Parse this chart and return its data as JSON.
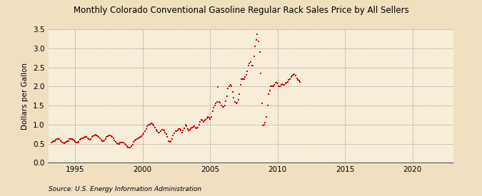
{
  "title": "Monthly Colorado Conventional Gasoline Regular Rack Sales Price by All Sellers",
  "ylabel": "Dollars per Gallon",
  "source": "Source: U.S. Energy Information Administration",
  "background_color": "#f0e0c0",
  "plot_background_color": "#f8edd8",
  "dot_color": "#cc0000",
  "dot_size": 4,
  "ylim": [
    0.0,
    3.5
  ],
  "yticks": [
    0.0,
    0.5,
    1.0,
    1.5,
    2.0,
    2.5,
    3.0,
    3.5
  ],
  "xlim": [
    1993.0,
    2023.0
  ],
  "xticks": [
    1995,
    2000,
    2005,
    2010,
    2015,
    2020
  ],
  "data": [
    [
      1993.25,
      0.53
    ],
    [
      1993.33,
      0.55
    ],
    [
      1993.42,
      0.57
    ],
    [
      1993.5,
      0.56
    ],
    [
      1993.58,
      0.6
    ],
    [
      1993.67,
      0.63
    ],
    [
      1993.75,
      0.63
    ],
    [
      1993.83,
      0.62
    ],
    [
      1993.92,
      0.58
    ],
    [
      1994.0,
      0.55
    ],
    [
      1994.08,
      0.52
    ],
    [
      1994.17,
      0.51
    ],
    [
      1994.25,
      0.52
    ],
    [
      1994.33,
      0.54
    ],
    [
      1994.42,
      0.57
    ],
    [
      1994.5,
      0.57
    ],
    [
      1994.58,
      0.62
    ],
    [
      1994.67,
      0.62
    ],
    [
      1994.75,
      0.62
    ],
    [
      1994.83,
      0.61
    ],
    [
      1994.92,
      0.58
    ],
    [
      1995.0,
      0.54
    ],
    [
      1995.08,
      0.52
    ],
    [
      1995.17,
      0.52
    ],
    [
      1995.25,
      0.55
    ],
    [
      1995.33,
      0.6
    ],
    [
      1995.42,
      0.62
    ],
    [
      1995.5,
      0.64
    ],
    [
      1995.58,
      0.65
    ],
    [
      1995.67,
      0.66
    ],
    [
      1995.75,
      0.67
    ],
    [
      1995.83,
      0.67
    ],
    [
      1995.92,
      0.65
    ],
    [
      1996.0,
      0.62
    ],
    [
      1996.08,
      0.61
    ],
    [
      1996.17,
      0.62
    ],
    [
      1996.25,
      0.67
    ],
    [
      1996.33,
      0.7
    ],
    [
      1996.42,
      0.72
    ],
    [
      1996.5,
      0.73
    ],
    [
      1996.58,
      0.72
    ],
    [
      1996.67,
      0.7
    ],
    [
      1996.75,
      0.68
    ],
    [
      1996.83,
      0.64
    ],
    [
      1996.92,
      0.6
    ],
    [
      1997.0,
      0.57
    ],
    [
      1997.08,
      0.56
    ],
    [
      1997.17,
      0.58
    ],
    [
      1997.25,
      0.63
    ],
    [
      1997.33,
      0.67
    ],
    [
      1997.42,
      0.7
    ],
    [
      1997.5,
      0.71
    ],
    [
      1997.58,
      0.72
    ],
    [
      1997.67,
      0.7
    ],
    [
      1997.75,
      0.68
    ],
    [
      1997.83,
      0.64
    ],
    [
      1997.92,
      0.59
    ],
    [
      1998.0,
      0.54
    ],
    [
      1998.08,
      0.51
    ],
    [
      1998.17,
      0.5
    ],
    [
      1998.25,
      0.5
    ],
    [
      1998.33,
      0.52
    ],
    [
      1998.42,
      0.53
    ],
    [
      1998.5,
      0.53
    ],
    [
      1998.58,
      0.52
    ],
    [
      1998.67,
      0.5
    ],
    [
      1998.75,
      0.48
    ],
    [
      1998.83,
      0.43
    ],
    [
      1998.92,
      0.4
    ],
    [
      1999.0,
      0.39
    ],
    [
      1999.08,
      0.4
    ],
    [
      1999.17,
      0.43
    ],
    [
      1999.25,
      0.48
    ],
    [
      1999.33,
      0.54
    ],
    [
      1999.42,
      0.58
    ],
    [
      1999.5,
      0.6
    ],
    [
      1999.58,
      0.62
    ],
    [
      1999.67,
      0.64
    ],
    [
      1999.75,
      0.66
    ],
    [
      1999.83,
      0.68
    ],
    [
      1999.92,
      0.7
    ],
    [
      2000.0,
      0.74
    ],
    [
      2000.08,
      0.78
    ],
    [
      2000.17,
      0.83
    ],
    [
      2000.25,
      0.89
    ],
    [
      2000.33,
      0.95
    ],
    [
      2000.42,
      0.99
    ],
    [
      2000.5,
      1.0
    ],
    [
      2000.58,
      1.02
    ],
    [
      2000.67,
      1.03
    ],
    [
      2000.75,
      1.02
    ],
    [
      2000.83,
      0.98
    ],
    [
      2000.92,
      0.92
    ],
    [
      2001.0,
      0.87
    ],
    [
      2001.08,
      0.83
    ],
    [
      2001.17,
      0.8
    ],
    [
      2001.25,
      0.79
    ],
    [
      2001.33,
      0.82
    ],
    [
      2001.42,
      0.86
    ],
    [
      2001.5,
      0.86
    ],
    [
      2001.58,
      0.84
    ],
    [
      2001.67,
      0.8
    ],
    [
      2001.75,
      0.76
    ],
    [
      2001.83,
      0.68
    ],
    [
      2001.92,
      0.57
    ],
    [
      2002.0,
      0.55
    ],
    [
      2002.08,
      0.57
    ],
    [
      2002.17,
      0.62
    ],
    [
      2002.25,
      0.71
    ],
    [
      2002.33,
      0.78
    ],
    [
      2002.42,
      0.82
    ],
    [
      2002.5,
      0.83
    ],
    [
      2002.58,
      0.85
    ],
    [
      2002.67,
      0.88
    ],
    [
      2002.75,
      0.88
    ],
    [
      2002.83,
      0.84
    ],
    [
      2002.92,
      0.8
    ],
    [
      2003.0,
      0.85
    ],
    [
      2003.08,
      0.9
    ],
    [
      2003.17,
      1.0
    ],
    [
      2003.25,
      0.95
    ],
    [
      2003.33,
      0.88
    ],
    [
      2003.42,
      0.84
    ],
    [
      2003.5,
      0.87
    ],
    [
      2003.58,
      0.9
    ],
    [
      2003.67,
      0.92
    ],
    [
      2003.75,
      0.94
    ],
    [
      2003.83,
      0.95
    ],
    [
      2003.92,
      0.92
    ],
    [
      2004.0,
      0.9
    ],
    [
      2004.08,
      0.93
    ],
    [
      2004.17,
      0.99
    ],
    [
      2004.25,
      1.07
    ],
    [
      2004.33,
      1.12
    ],
    [
      2004.42,
      1.1
    ],
    [
      2004.5,
      1.08
    ],
    [
      2004.58,
      1.1
    ],
    [
      2004.67,
      1.13
    ],
    [
      2004.75,
      1.17
    ],
    [
      2004.83,
      1.2
    ],
    [
      2004.92,
      1.18
    ],
    [
      2005.0,
      1.15
    ],
    [
      2005.08,
      1.2
    ],
    [
      2005.17,
      1.35
    ],
    [
      2005.25,
      1.45
    ],
    [
      2005.33,
      1.5
    ],
    [
      2005.42,
      1.55
    ],
    [
      2005.5,
      1.6
    ],
    [
      2005.58,
      1.98
    ],
    [
      2005.67,
      1.6
    ],
    [
      2005.75,
      1.57
    ],
    [
      2005.83,
      1.5
    ],
    [
      2005.92,
      1.47
    ],
    [
      2006.0,
      1.47
    ],
    [
      2006.08,
      1.5
    ],
    [
      2006.17,
      1.62
    ],
    [
      2006.25,
      1.75
    ],
    [
      2006.33,
      1.95
    ],
    [
      2006.42,
      2.0
    ],
    [
      2006.5,
      2.05
    ],
    [
      2006.58,
      2.0
    ],
    [
      2006.67,
      1.85
    ],
    [
      2006.75,
      1.7
    ],
    [
      2006.83,
      1.6
    ],
    [
      2006.92,
      1.55
    ],
    [
      2007.0,
      1.57
    ],
    [
      2007.08,
      1.65
    ],
    [
      2007.17,
      1.8
    ],
    [
      2007.25,
      2.05
    ],
    [
      2007.33,
      2.2
    ],
    [
      2007.42,
      2.2
    ],
    [
      2007.5,
      2.2
    ],
    [
      2007.58,
      2.25
    ],
    [
      2007.67,
      2.3
    ],
    [
      2007.75,
      2.4
    ],
    [
      2007.83,
      2.55
    ],
    [
      2007.92,
      2.6
    ],
    [
      2008.0,
      2.65
    ],
    [
      2008.08,
      2.55
    ],
    [
      2008.17,
      2.55
    ],
    [
      2008.25,
      2.8
    ],
    [
      2008.33,
      3.05
    ],
    [
      2008.42,
      3.22
    ],
    [
      2008.5,
      3.38
    ],
    [
      2008.58,
      3.18
    ],
    [
      2008.67,
      2.9
    ],
    [
      2008.75,
      2.35
    ],
    [
      2008.83,
      1.55
    ],
    [
      2008.92,
      0.98
    ],
    [
      2009.0,
      1.0
    ],
    [
      2009.08,
      1.05
    ],
    [
      2009.17,
      1.2
    ],
    [
      2009.25,
      1.5
    ],
    [
      2009.33,
      1.8
    ],
    [
      2009.42,
      1.9
    ],
    [
      2009.5,
      2.0
    ],
    [
      2009.58,
      2.0
    ],
    [
      2009.67,
      2.0
    ],
    [
      2009.75,
      2.05
    ],
    [
      2009.83,
      2.1
    ],
    [
      2009.92,
      2.1
    ],
    [
      2010.0,
      2.08
    ],
    [
      2010.08,
      2.0
    ],
    [
      2010.17,
      2.0
    ],
    [
      2010.25,
      2.05
    ],
    [
      2010.33,
      2.07
    ],
    [
      2010.42,
      2.05
    ],
    [
      2010.5,
      2.05
    ],
    [
      2010.58,
      2.08
    ],
    [
      2010.67,
      2.1
    ],
    [
      2010.75,
      2.12
    ],
    [
      2010.83,
      2.17
    ],
    [
      2010.92,
      2.2
    ],
    [
      2011.0,
      2.25
    ],
    [
      2011.08,
      2.28
    ],
    [
      2011.17,
      2.3
    ],
    [
      2011.25,
      2.32
    ],
    [
      2011.33,
      2.28
    ],
    [
      2011.42,
      2.22
    ],
    [
      2011.5,
      2.18
    ],
    [
      2011.58,
      2.15
    ],
    [
      2011.67,
      2.12
    ]
  ]
}
